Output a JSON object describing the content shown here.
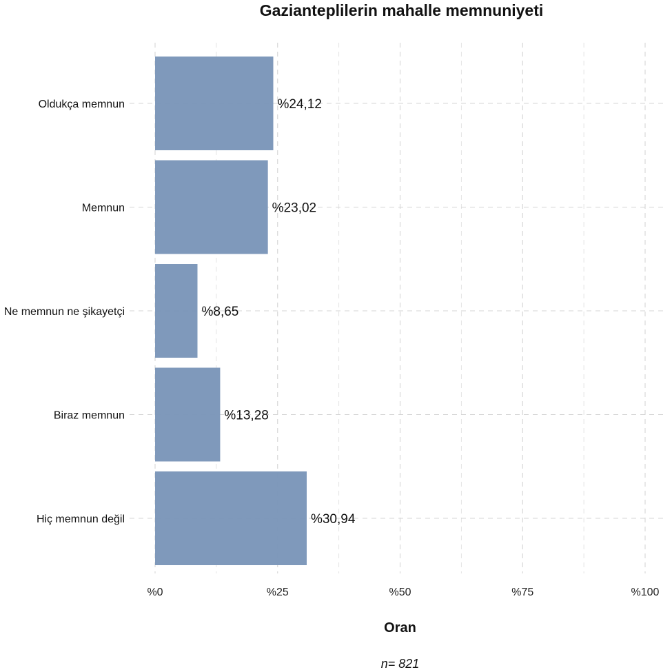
{
  "chart_data": {
    "type": "bar",
    "orientation": "horizontal",
    "title": "Gazianteplilerin mahalle memnuniyeti",
    "xlabel": "Oran",
    "ylabel": "",
    "caption": "n=  821",
    "xlim": [
      0,
      100
    ],
    "x_ticks": [
      0,
      25,
      50,
      75,
      100
    ],
    "x_tick_labels": [
      "%0",
      "%25",
      "%50",
      "%75",
      "%100"
    ],
    "grid": true,
    "bar_color": "#7b96b9",
    "categories": [
      "Oldukça memnun",
      "Memnun",
      "Ne memnun ne şikayetçi",
      "Biraz memnun",
      "Hiç memnun değil"
    ],
    "values": [
      24.12,
      23.02,
      8.65,
      13.28,
      30.94
    ],
    "data_labels": [
      "%24,12",
      "%23,02",
      "%8,65",
      "%13,28",
      "%30,94"
    ]
  }
}
